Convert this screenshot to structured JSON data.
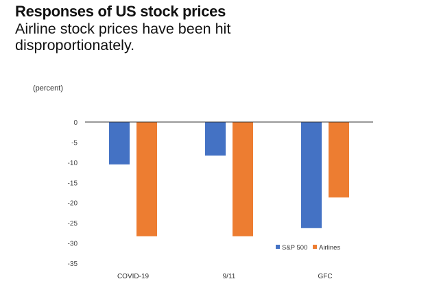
{
  "chart_data": {
    "type": "bar",
    "title": "Responses of US stock prices",
    "subtitle": "Airline stock prices have been hit disproportionately.",
    "ylabel": "(percent)",
    "xlabel": "",
    "categories": [
      "COVID-19",
      "9/11",
      "GFC"
    ],
    "series": [
      {
        "name": "S&P 500",
        "color": "#4472c4",
        "values": [
          -10.5,
          -8.3,
          -26.3
        ]
      },
      {
        "name": "Airlines",
        "color": "#ed7d31",
        "values": [
          -28.3,
          -28.3,
          -18.7
        ]
      }
    ],
    "ylim": [
      -35,
      0
    ],
    "yticks": [
      "0",
      "-5",
      "-10",
      "-15",
      "-20",
      "-25",
      "-30",
      "-35"
    ],
    "grid": false,
    "legend": "bottom-right"
  }
}
